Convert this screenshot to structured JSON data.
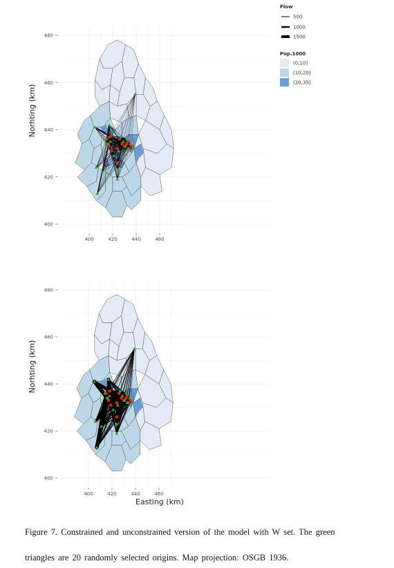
{
  "colors": {
    "pop_low": "#e4ebf6",
    "pop_mid": "#bdd7e7",
    "pop_high": "#6a9fd4",
    "border": "#4a4a4a",
    "flow": "#000000",
    "origin": "#33aa33",
    "destination": "#dd2222",
    "grid": "#ececec"
  },
  "legend": {
    "flow_title": "Flow",
    "flow_items": [
      {
        "label": "500",
        "value": 500
      },
      {
        "label": "1000",
        "value": 1000
      },
      {
        "label": "1500",
        "value": 1500
      }
    ],
    "pop_title": "Pop.1000",
    "pop_items": [
      {
        "label": "(0,10]",
        "color": "#e4ebf6"
      },
      {
        "label": "(10,20]",
        "color": "#bdd7e7"
      },
      {
        "label": "(20,35]",
        "color": "#6a9fd4"
      }
    ]
  },
  "top_map": {
    "ylabel": "Norhting (km)",
    "xlabel": "",
    "x_ticks": [
      "400",
      "420",
      "440",
      "460"
    ],
    "y_ticks": [
      "480",
      "460",
      "440",
      "420",
      "400"
    ],
    "xlim": [
      388,
      476
    ],
    "ylim": [
      398,
      484
    ],
    "model": "constrained"
  },
  "bottom_map": {
    "ylabel": "Norhting (km)",
    "xlabel": "Easting (km)",
    "x_ticks": [
      "400",
      "420",
      "440",
      "460"
    ],
    "y_ticks": [
      "480",
      "460",
      "440",
      "420",
      "400"
    ],
    "xlim": [
      388,
      476
    ],
    "ylim": [
      398,
      484
    ],
    "model": "unconstrained"
  },
  "origins": [
    [
      405,
      441
    ],
    [
      406,
      424
    ],
    [
      411,
      422
    ],
    [
      414,
      436
    ],
    [
      416,
      434
    ],
    [
      417,
      442
    ],
    [
      418,
      435
    ],
    [
      424,
      423
    ],
    [
      424,
      419
    ],
    [
      425,
      431
    ],
    [
      427,
      437
    ],
    [
      429,
      435
    ],
    [
      431,
      433
    ],
    [
      433,
      432
    ],
    [
      435,
      434
    ],
    [
      437,
      432
    ],
    [
      439,
      455
    ],
    [
      407,
      413
    ],
    [
      421,
      429
    ],
    [
      432,
      436
    ]
  ],
  "destinations": [
    [
      415,
      436
    ],
    [
      416,
      434
    ],
    [
      417,
      433
    ],
    [
      418,
      437
    ],
    [
      424,
      432
    ],
    [
      426,
      436
    ],
    [
      428,
      434
    ],
    [
      430,
      433
    ],
    [
      432,
      434
    ],
    [
      433,
      435
    ],
    [
      434,
      432
    ],
    [
      436,
      433
    ],
    [
      419,
      431
    ],
    [
      424,
      426
    ]
  ],
  "caption": {
    "line1": "Figure  7. Constrained  and  unconstrained  version  of the model with  W set. The  green",
    "line2": "triangles  are 20 randomly  selected  origins.  Map projection:  OSGB 1936."
  }
}
